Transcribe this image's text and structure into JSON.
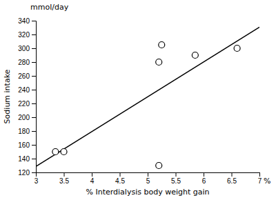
{
  "chart_data": {
    "type": "scatter",
    "xlabel": "% Interdialysis body weight gain",
    "ylabel": "Sodium intake",
    "annotations": [
      {
        "text": "%",
        "axis": "x"
      },
      {
        "text": "mmol/day",
        "axis": "y"
      }
    ],
    "series": [
      {
        "type": "scatter",
        "marker": "open-circle",
        "color": "black",
        "x": [
          3.35,
          3.5,
          5.2,
          5.25,
          5.85,
          6.6,
          5.2
        ],
        "values": [
          150,
          150,
          280,
          305,
          290,
          300,
          130
        ]
      },
      {
        "type": "line",
        "line_style": "solid",
        "color": "black",
        "x": [
          3.0,
          7.0
        ],
        "values": [
          128.73,
          330.56
        ]
      }
    ],
    "xlim": [
      3.0,
      7.0
    ],
    "ylim": [
      120,
      340
    ],
    "xticks": [
      3.0,
      3.5,
      4.0,
      4.5,
      5.0,
      5.5,
      6.0,
      6.5,
      7.0
    ],
    "yticks": [
      120,
      140,
      160,
      180,
      200,
      220,
      240,
      260,
      280,
      300,
      320,
      340
    ],
    "grid": false
  }
}
